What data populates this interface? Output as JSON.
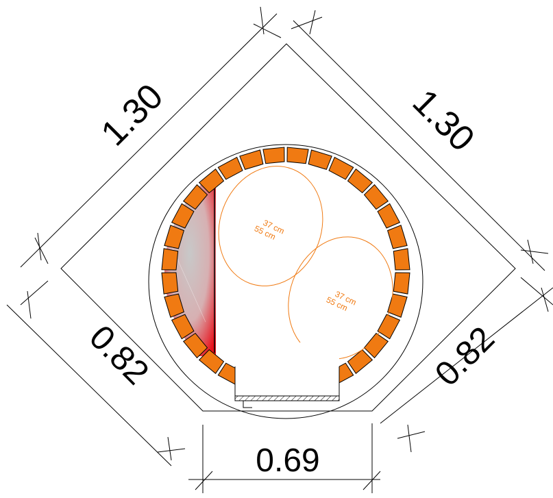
{
  "dimensions": {
    "top_left": "1.30",
    "top_right": "1.30",
    "bottom_left": "0.82",
    "bottom_right": "0.82",
    "bottom": "0.69"
  },
  "seats": [
    {
      "width_label": "37 cm",
      "depth_label": "55 cm"
    },
    {
      "width_label": "37 cm",
      "depth_label": "55 cm"
    }
  ],
  "colors": {
    "brick": "#f07a12",
    "seat_outline": "#f07a12",
    "heater_red": "#e8101a",
    "heater_grey": "#c8c8c8"
  }
}
